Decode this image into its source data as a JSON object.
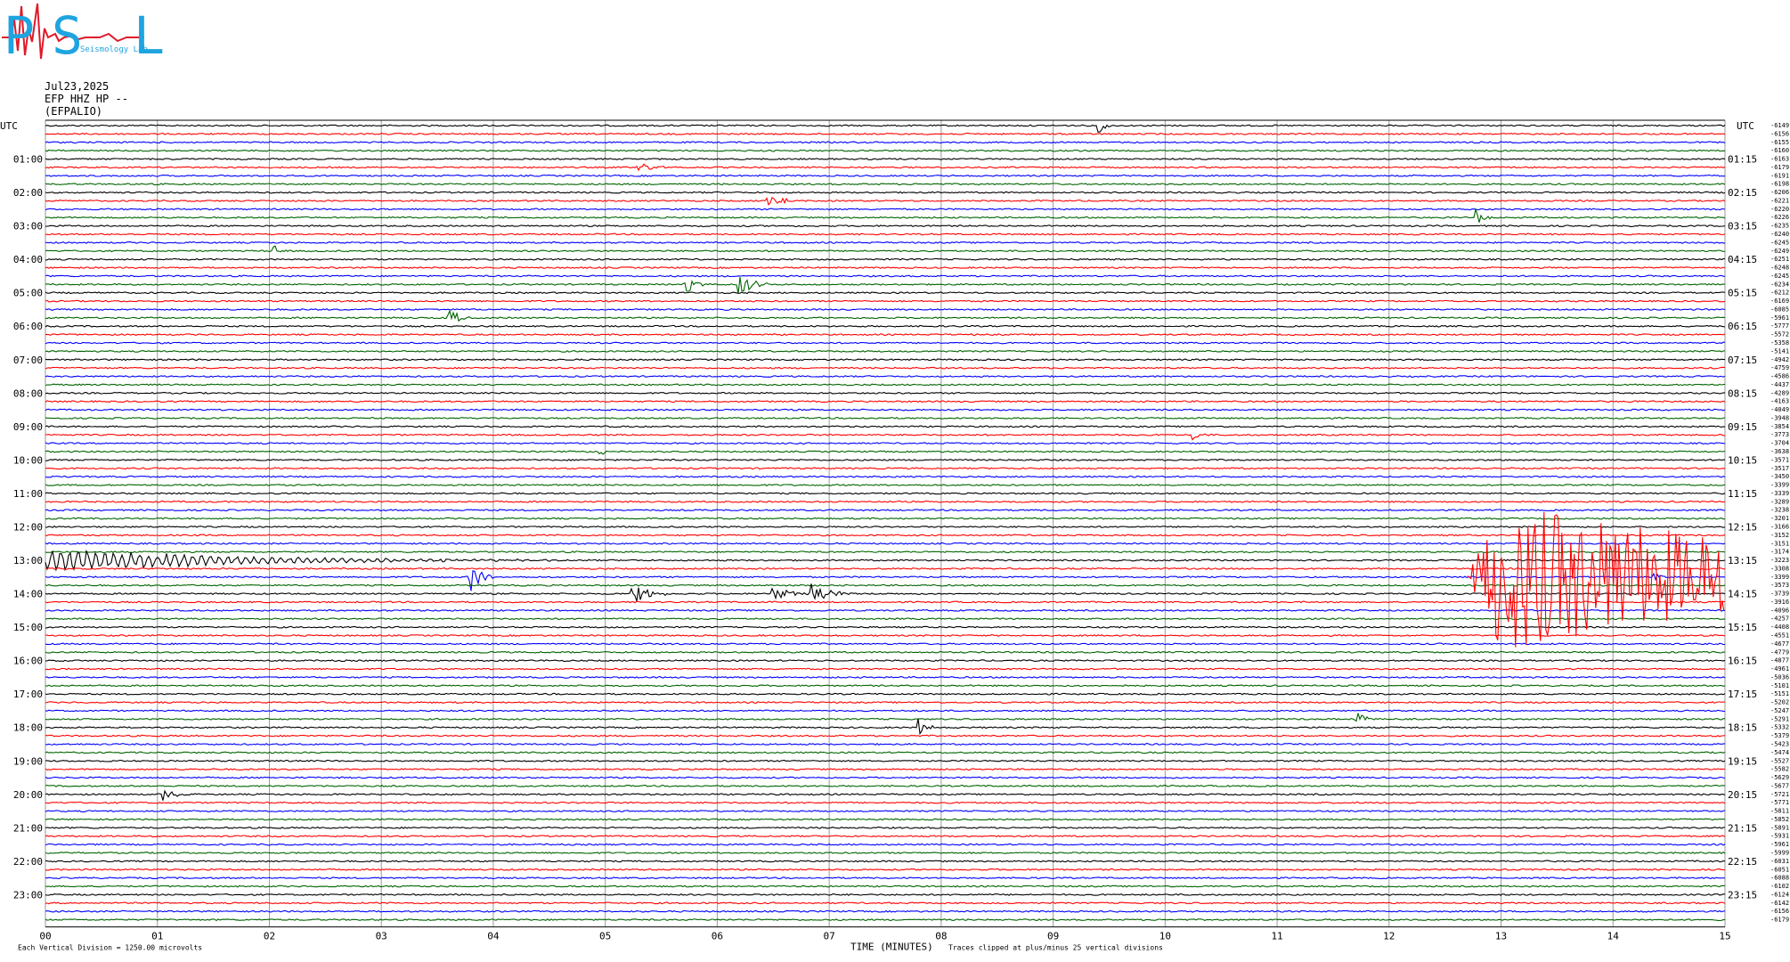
{
  "logo": {
    "letters": [
      "P",
      "S",
      "L"
    ],
    "caption": "Seismology Lab",
    "colors": {
      "letters": "#1ea4e0",
      "wave": "#e01a2a"
    }
  },
  "header": {
    "date": "Jul23,2025",
    "channel": "EFP HHZ HP --",
    "station": "(EFPALIO)"
  },
  "chart_data": {
    "type": "line",
    "title": "",
    "left_label": "UTC",
    "right_label": "UTC",
    "xlabel": "TIME (MINUTES)",
    "xlim": [
      0,
      15
    ],
    "x_ticks": [
      "00",
      "01",
      "02",
      "03",
      "04",
      "05",
      "06",
      "07",
      "08",
      "09",
      "10",
      "11",
      "12",
      "13",
      "14",
      "15"
    ],
    "left_hours": [
      "01:00",
      "02:00",
      "03:00",
      "04:00",
      "05:00",
      "06:00",
      "07:00",
      "08:00",
      "09:00",
      "10:00",
      "11:00",
      "12:00",
      "13:00",
      "14:00",
      "15:00",
      "16:00",
      "17:00",
      "18:00",
      "19:00",
      "20:00",
      "21:00",
      "22:00",
      "23:00"
    ],
    "right_hours": [
      "01:15",
      "02:15",
      "03:15",
      "04:15",
      "05:15",
      "06:15",
      "07:15",
      "08:15",
      "09:15",
      "10:15",
      "11:15",
      "12:15",
      "13:15",
      "14:15",
      "15:15",
      "16:15",
      "17:15",
      "18:15",
      "19:15",
      "20:15",
      "21:15",
      "22:15",
      "23:15"
    ],
    "trace_colors": [
      "#000000",
      "#ff0000",
      "#0000ff",
      "#006400"
    ],
    "trace_offsets": [
      "-6149",
      "-6156",
      "-6155",
      "-6160",
      "-6163",
      "-6179",
      "-6191",
      "-6198",
      "-6206",
      "-6221",
      "-6220",
      "-6226",
      "-6235",
      "-6240",
      "-6245",
      "-6249",
      "-6251",
      "-6248",
      "-6245",
      "-6234",
      "-6212",
      "-6169",
      "-6085",
      "-5961",
      "-5777",
      "-5572",
      "-5358",
      "-5141",
      "-4942",
      "-4759",
      "-4586",
      "-4437",
      "-4289",
      "-4163",
      "-4049",
      "-3948",
      "-3854",
      "-3773",
      "-3704",
      "-3638",
      "-3571",
      "-3517",
      "-3450",
      "-3399",
      "-3339",
      "-3289",
      "-3238",
      "-3201",
      "-3166",
      "-3152",
      "-3151",
      "-3174",
      "-3223",
      "-3308",
      "-3399",
      "-3573",
      "-3739",
      "-3916",
      "-4096",
      "-4257",
      "-4408",
      "-4551",
      "-4677",
      "-4779",
      "-4877",
      "-4961",
      "-5036",
      "-5101",
      "-5151",
      "-5202",
      "-5247",
      "-5291",
      "-5332",
      "-5379",
      "-5423",
      "-5474",
      "-5527",
      "-5582",
      "-5629",
      "-5677",
      "-5721",
      "-5771",
      "-5811",
      "-5852",
      "-5891",
      "-5931",
      "-5961",
      "-5999",
      "-6031",
      "-6051",
      "-6088",
      "-6102",
      "-6124",
      "-6142",
      "-6156",
      "-6179"
    ],
    "events": [
      {
        "trace": 0,
        "minute": 9.42,
        "amp": 0.8,
        "len": 0.12
      },
      {
        "trace": 5,
        "minute": 5.3,
        "amp": 0.7,
        "len": 0.25
      },
      {
        "trace": 9,
        "minute": 6.45,
        "amp": 1.1,
        "len": 0.3
      },
      {
        "trace": 11,
        "minute": 12.78,
        "amp": 1.1,
        "len": 0.15
      },
      {
        "trace": 15,
        "minute": 2.05,
        "amp": 0.7,
        "len": 0.1
      },
      {
        "trace": 19,
        "minute": 5.72,
        "amp": 1.1,
        "len": 0.15
      },
      {
        "trace": 19,
        "minute": 6.2,
        "amp": 1.4,
        "len": 0.25
      },
      {
        "trace": 23,
        "minute": 3.6,
        "amp": 1.1,
        "len": 0.2
      },
      {
        "trace": 37,
        "minute": 10.25,
        "amp": 0.7,
        "len": 0.15
      },
      {
        "trace": 39,
        "minute": 4.95,
        "amp": 0.7,
        "len": 0.1
      },
      {
        "trace": 54,
        "minute": 3.8,
        "amp": 1.8,
        "len": 0.2
      },
      {
        "trace": 56,
        "minute": 5.25,
        "amp": 1.2,
        "len": 0.3
      },
      {
        "trace": 56,
        "minute": 6.5,
        "amp": 0.7,
        "len": 0.4
      },
      {
        "trace": 56,
        "minute": 6.85,
        "amp": 1.2,
        "len": 0.4
      },
      {
        "trace": 71,
        "minute": 11.72,
        "amp": 0.9,
        "len": 0.15
      },
      {
        "trace": 72,
        "minute": 7.8,
        "amp": 1.1,
        "len": 0.15
      },
      {
        "trace": 80,
        "minute": 1.05,
        "amp": 0.8,
        "len": 0.2
      },
      {
        "trace": 54,
        "minute": 14.38,
        "amp": 0.6,
        "len": 0.15
      }
    ],
    "quake": {
      "start_minute": 12.7,
      "end_minute": 15.0,
      "traces": [
        48,
        49,
        50,
        51,
        52,
        53,
        54,
        55,
        56,
        57,
        58,
        59,
        60,
        61,
        62,
        63,
        64
      ],
      "color": "#ff0000"
    },
    "coda": {
      "trace": 52,
      "start_minute": 0.0,
      "end_minute": 4.6,
      "color": "#0000ff"
    },
    "footer": {
      "left": "Each Vertical Division = 1250.00 microvolts",
      "right": "Traces clipped at plus/minus 25 vertical divisions"
    }
  }
}
